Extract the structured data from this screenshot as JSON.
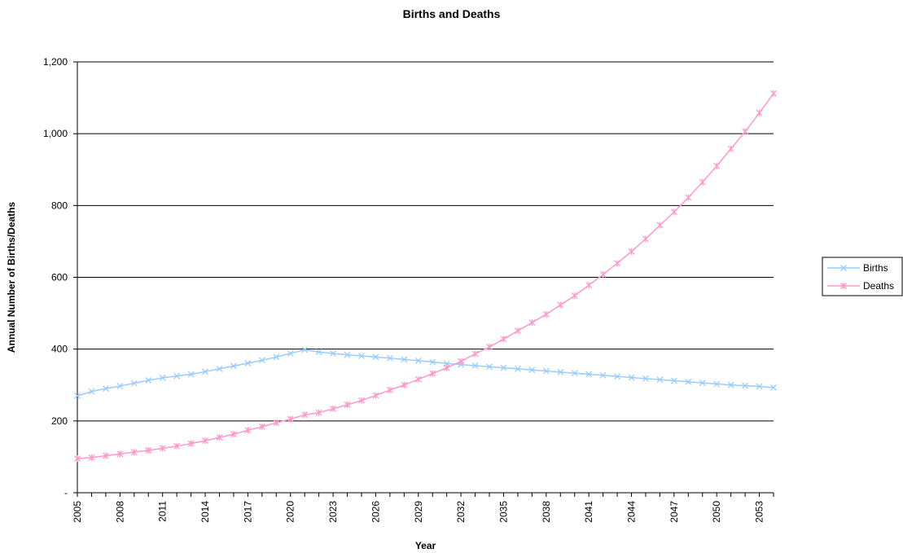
{
  "chart_data": {
    "type": "line",
    "title": "Births and Deaths",
    "xlabel": "Year",
    "ylabel": "Annual Number of Births/Deaths",
    "ylim": [
      0,
      1200
    ],
    "y_ticks": [
      0,
      200,
      400,
      600,
      800,
      1000,
      1200
    ],
    "y_tick_labels": [
      "-",
      "200",
      "400",
      "600",
      "800",
      "1,000",
      "1,200"
    ],
    "x": [
      2005,
      2006,
      2007,
      2008,
      2009,
      2010,
      2011,
      2012,
      2013,
      2014,
      2015,
      2016,
      2017,
      2018,
      2019,
      2020,
      2021,
      2022,
      2023,
      2024,
      2025,
      2026,
      2027,
      2028,
      2029,
      2030,
      2031,
      2032,
      2033,
      2034,
      2035,
      2036,
      2037,
      2038,
      2039,
      2040,
      2041,
      2042,
      2043,
      2044,
      2045,
      2046,
      2047,
      2048,
      2049,
      2050,
      2051,
      2052,
      2053,
      2054
    ],
    "x_tick_labels": [
      "2005",
      "2008",
      "2011",
      "2014",
      "2017",
      "2020",
      "2023",
      "2026",
      "2029",
      "2032",
      "2035",
      "2038",
      "2041",
      "2044",
      "2047",
      "2050",
      "2053"
    ],
    "grid": true,
    "legend_position": "right",
    "series": [
      {
        "name": "Births",
        "color": "#99ccff",
        "marker": "x",
        "values": [
          270,
          282,
          290,
          297,
          305,
          313,
          320,
          325,
          330,
          337,
          345,
          353,
          361,
          369,
          378,
          388,
          398,
          392,
          388,
          384,
          381,
          378,
          375,
          371,
          368,
          364,
          360,
          357,
          354,
          351,
          348,
          345,
          342,
          339,
          336,
          333,
          330,
          327,
          324,
          321,
          318,
          315,
          312,
          309,
          306,
          303,
          300,
          298,
          296,
          293
        ]
      },
      {
        "name": "Deaths",
        "color": "#ff99cc",
        "marker": "asterisk",
        "values": [
          95,
          98,
          103,
          108,
          113,
          118,
          124,
          130,
          137,
          145,
          154,
          163,
          174,
          184,
          195,
          205,
          217,
          223,
          234,
          245,
          257,
          271,
          286,
          300,
          316,
          332,
          348,
          366,
          387,
          406,
          428,
          451,
          474,
          497,
          523,
          549,
          578,
          608,
          639,
          672,
          707,
          745,
          782,
          822,
          865,
          910,
          958,
          1006,
          1058,
          1112
        ]
      }
    ]
  }
}
